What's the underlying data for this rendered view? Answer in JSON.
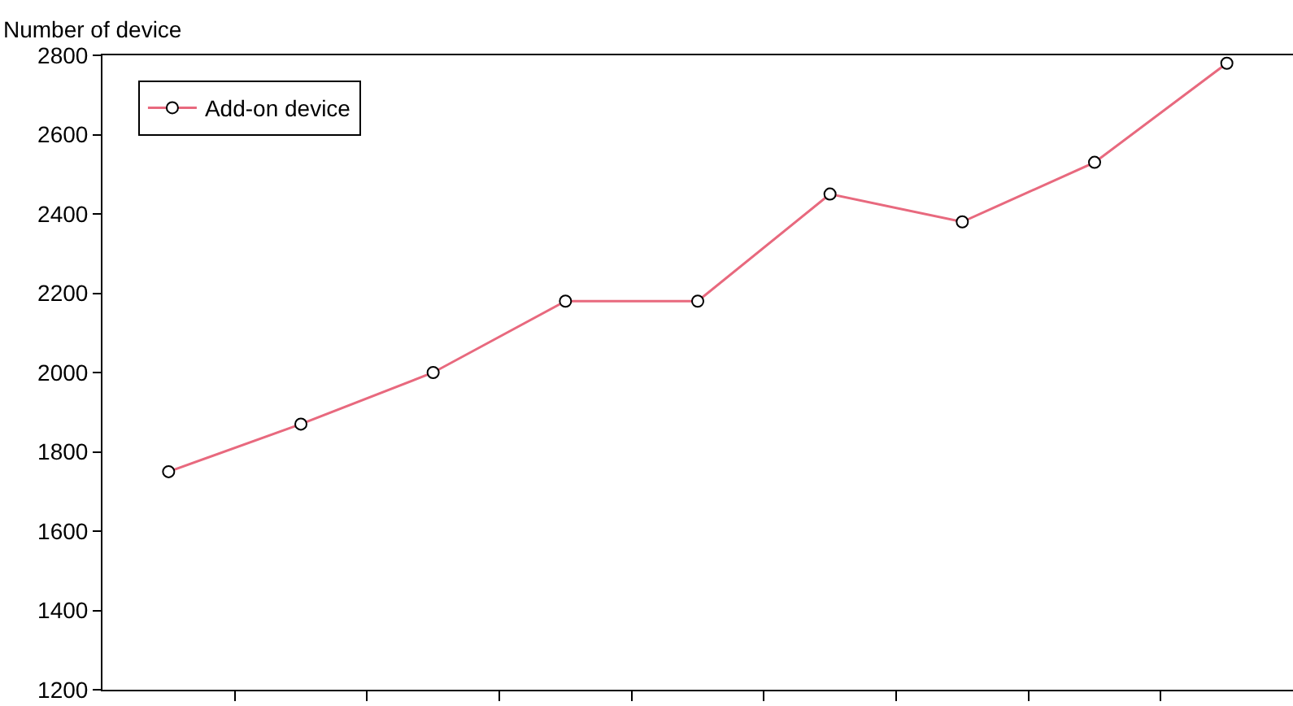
{
  "chart_data": {
    "type": "line",
    "ylabel": "Number of device",
    "categories": [
      null,
      null,
      null,
      null,
      null,
      null,
      null,
      null,
      null
    ],
    "series": [
      {
        "name": "Add-on device",
        "color": "#e8697e",
        "values": [
          1750,
          1870,
          2000,
          2180,
          2180,
          2450,
          2380,
          2530,
          2780
        ]
      }
    ],
    "ylim": [
      1200,
      2800
    ],
    "yticks": [
      1200,
      1400,
      1600,
      1800,
      2000,
      2200,
      2400,
      2600,
      2800
    ],
    "grid": false,
    "legend": "top left",
    "marker": "circle",
    "line_style": "solid"
  }
}
